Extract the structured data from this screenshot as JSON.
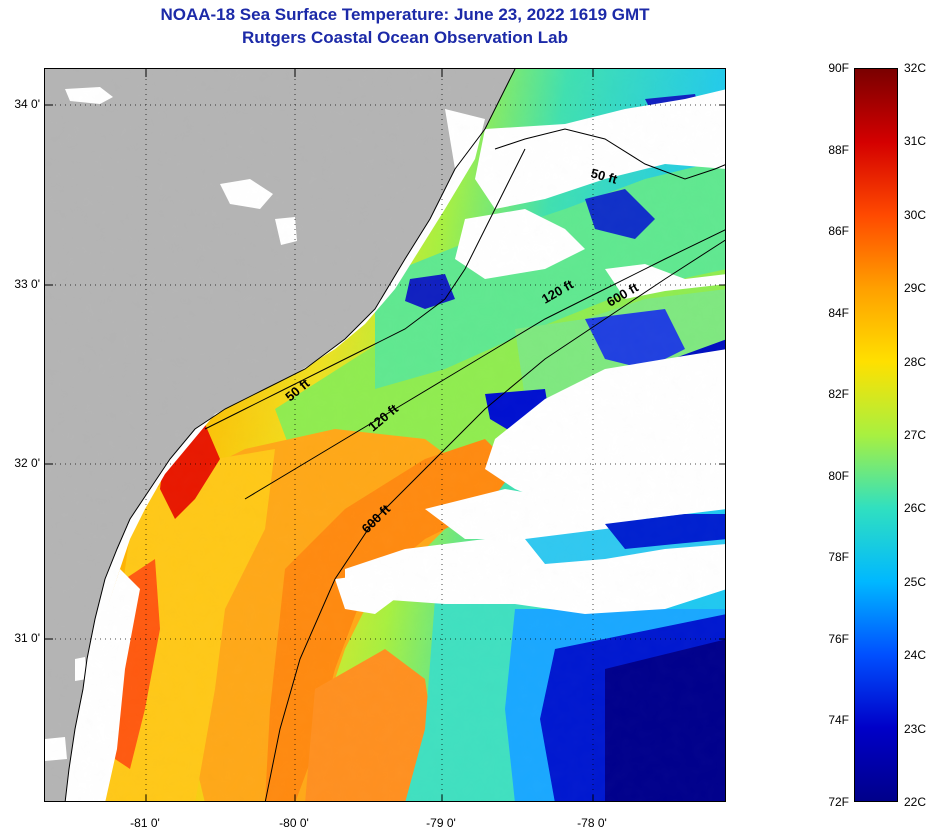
{
  "header": {
    "title": "NOAA-18 Sea Surface Temperature:  June 23, 2022 1619 GMT",
    "subtitle": "Rutgers Coastal Ocean Observation Lab"
  },
  "map": {
    "lat_labels": [
      "34 0'",
      "33 0'",
      "32 0'",
      "31 0'"
    ],
    "lon_labels": [
      "-81 0'",
      "-80 0'",
      "-79 0'",
      "-78 0'"
    ],
    "contour_labels": [
      "50 ft",
      "120 ft",
      "600 ft",
      "50 ft",
      "120 ft",
      "600 ft"
    ],
    "land_color": "#b4b4b4",
    "cloud_color": "#ffffff"
  },
  "colorbar": {
    "fahrenheit_labels": [
      "90F",
      "88F",
      "86F",
      "84F",
      "82F",
      "80F",
      "78F",
      "76F",
      "74F",
      "72F"
    ],
    "celsius_labels": [
      "32C",
      "31C",
      "30C",
      "29C",
      "28C",
      "27C",
      "26C",
      "25C",
      "24C",
      "23C",
      "22C"
    ],
    "range_c": [
      22,
      32
    ],
    "colors": [
      "#7a0000",
      "#d40000",
      "#ff4a00",
      "#ffa000",
      "#ffe000",
      "#a8f040",
      "#30e0c0",
      "#00b8ff",
      "#0050ff",
      "#0000c8",
      "#00008a"
    ]
  }
}
